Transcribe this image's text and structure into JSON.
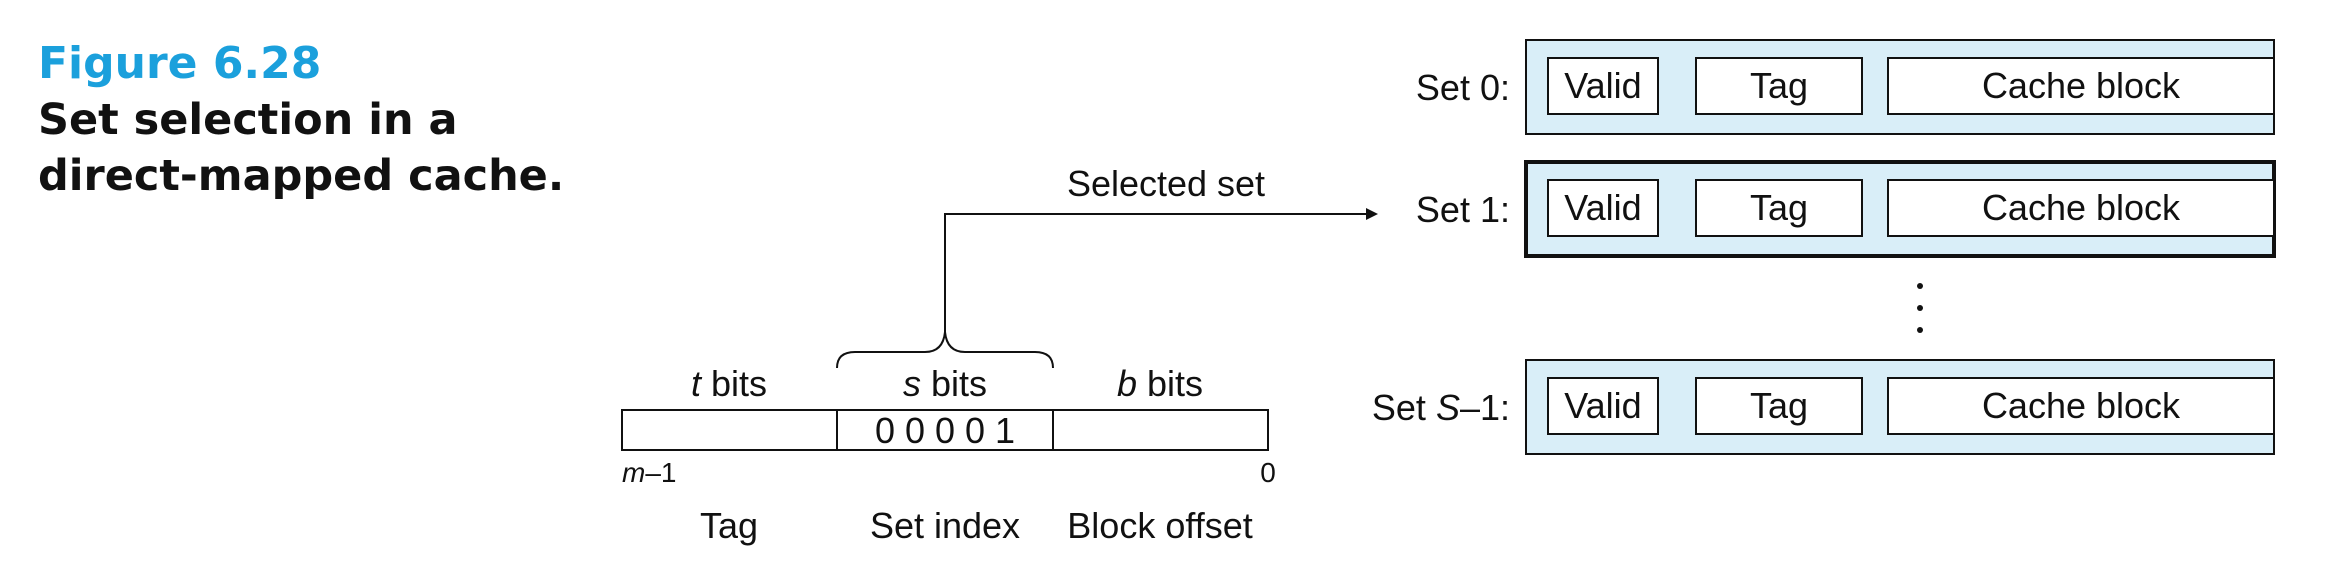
{
  "caption": {
    "figure_number": "Figure 6.28",
    "title": "Set selection in a direct-mapped cache."
  },
  "address": {
    "fields": [
      {
        "bits": "t",
        "bits_suffix": " bits",
        "name": "Tag",
        "value": ""
      },
      {
        "bits": "s",
        "bits_suffix": " bits",
        "name": "Set index",
        "value": "0 0 0 0 1"
      },
      {
        "bits": "b",
        "bits_suffix": " bits",
        "name": "Block offset",
        "value": ""
      }
    ],
    "msb_label_var": "m",
    "msb_label_rest": "–1",
    "lsb_label": "0"
  },
  "selected_label": "Selected set",
  "cache": {
    "sets": [
      {
        "label_prefix": "Set ",
        "label_var": "",
        "label_rest": "0:",
        "selected": false,
        "valid": "Valid",
        "tag": "Tag",
        "block": "Cache block"
      },
      {
        "label_prefix": "Set ",
        "label_var": "",
        "label_rest": "1:",
        "selected": true,
        "valid": "Valid",
        "tag": "Tag",
        "block": "Cache block"
      },
      {
        "label_prefix": "Set ",
        "label_var": "S",
        "label_rest": "–1:",
        "selected": false,
        "valid": "Valid",
        "tag": "Tag",
        "block": "Cache block"
      }
    ]
  },
  "colors": {
    "set_fill": "#d9eef8",
    "stroke": "#111111",
    "caption_accent": "#1ba0dc"
  }
}
